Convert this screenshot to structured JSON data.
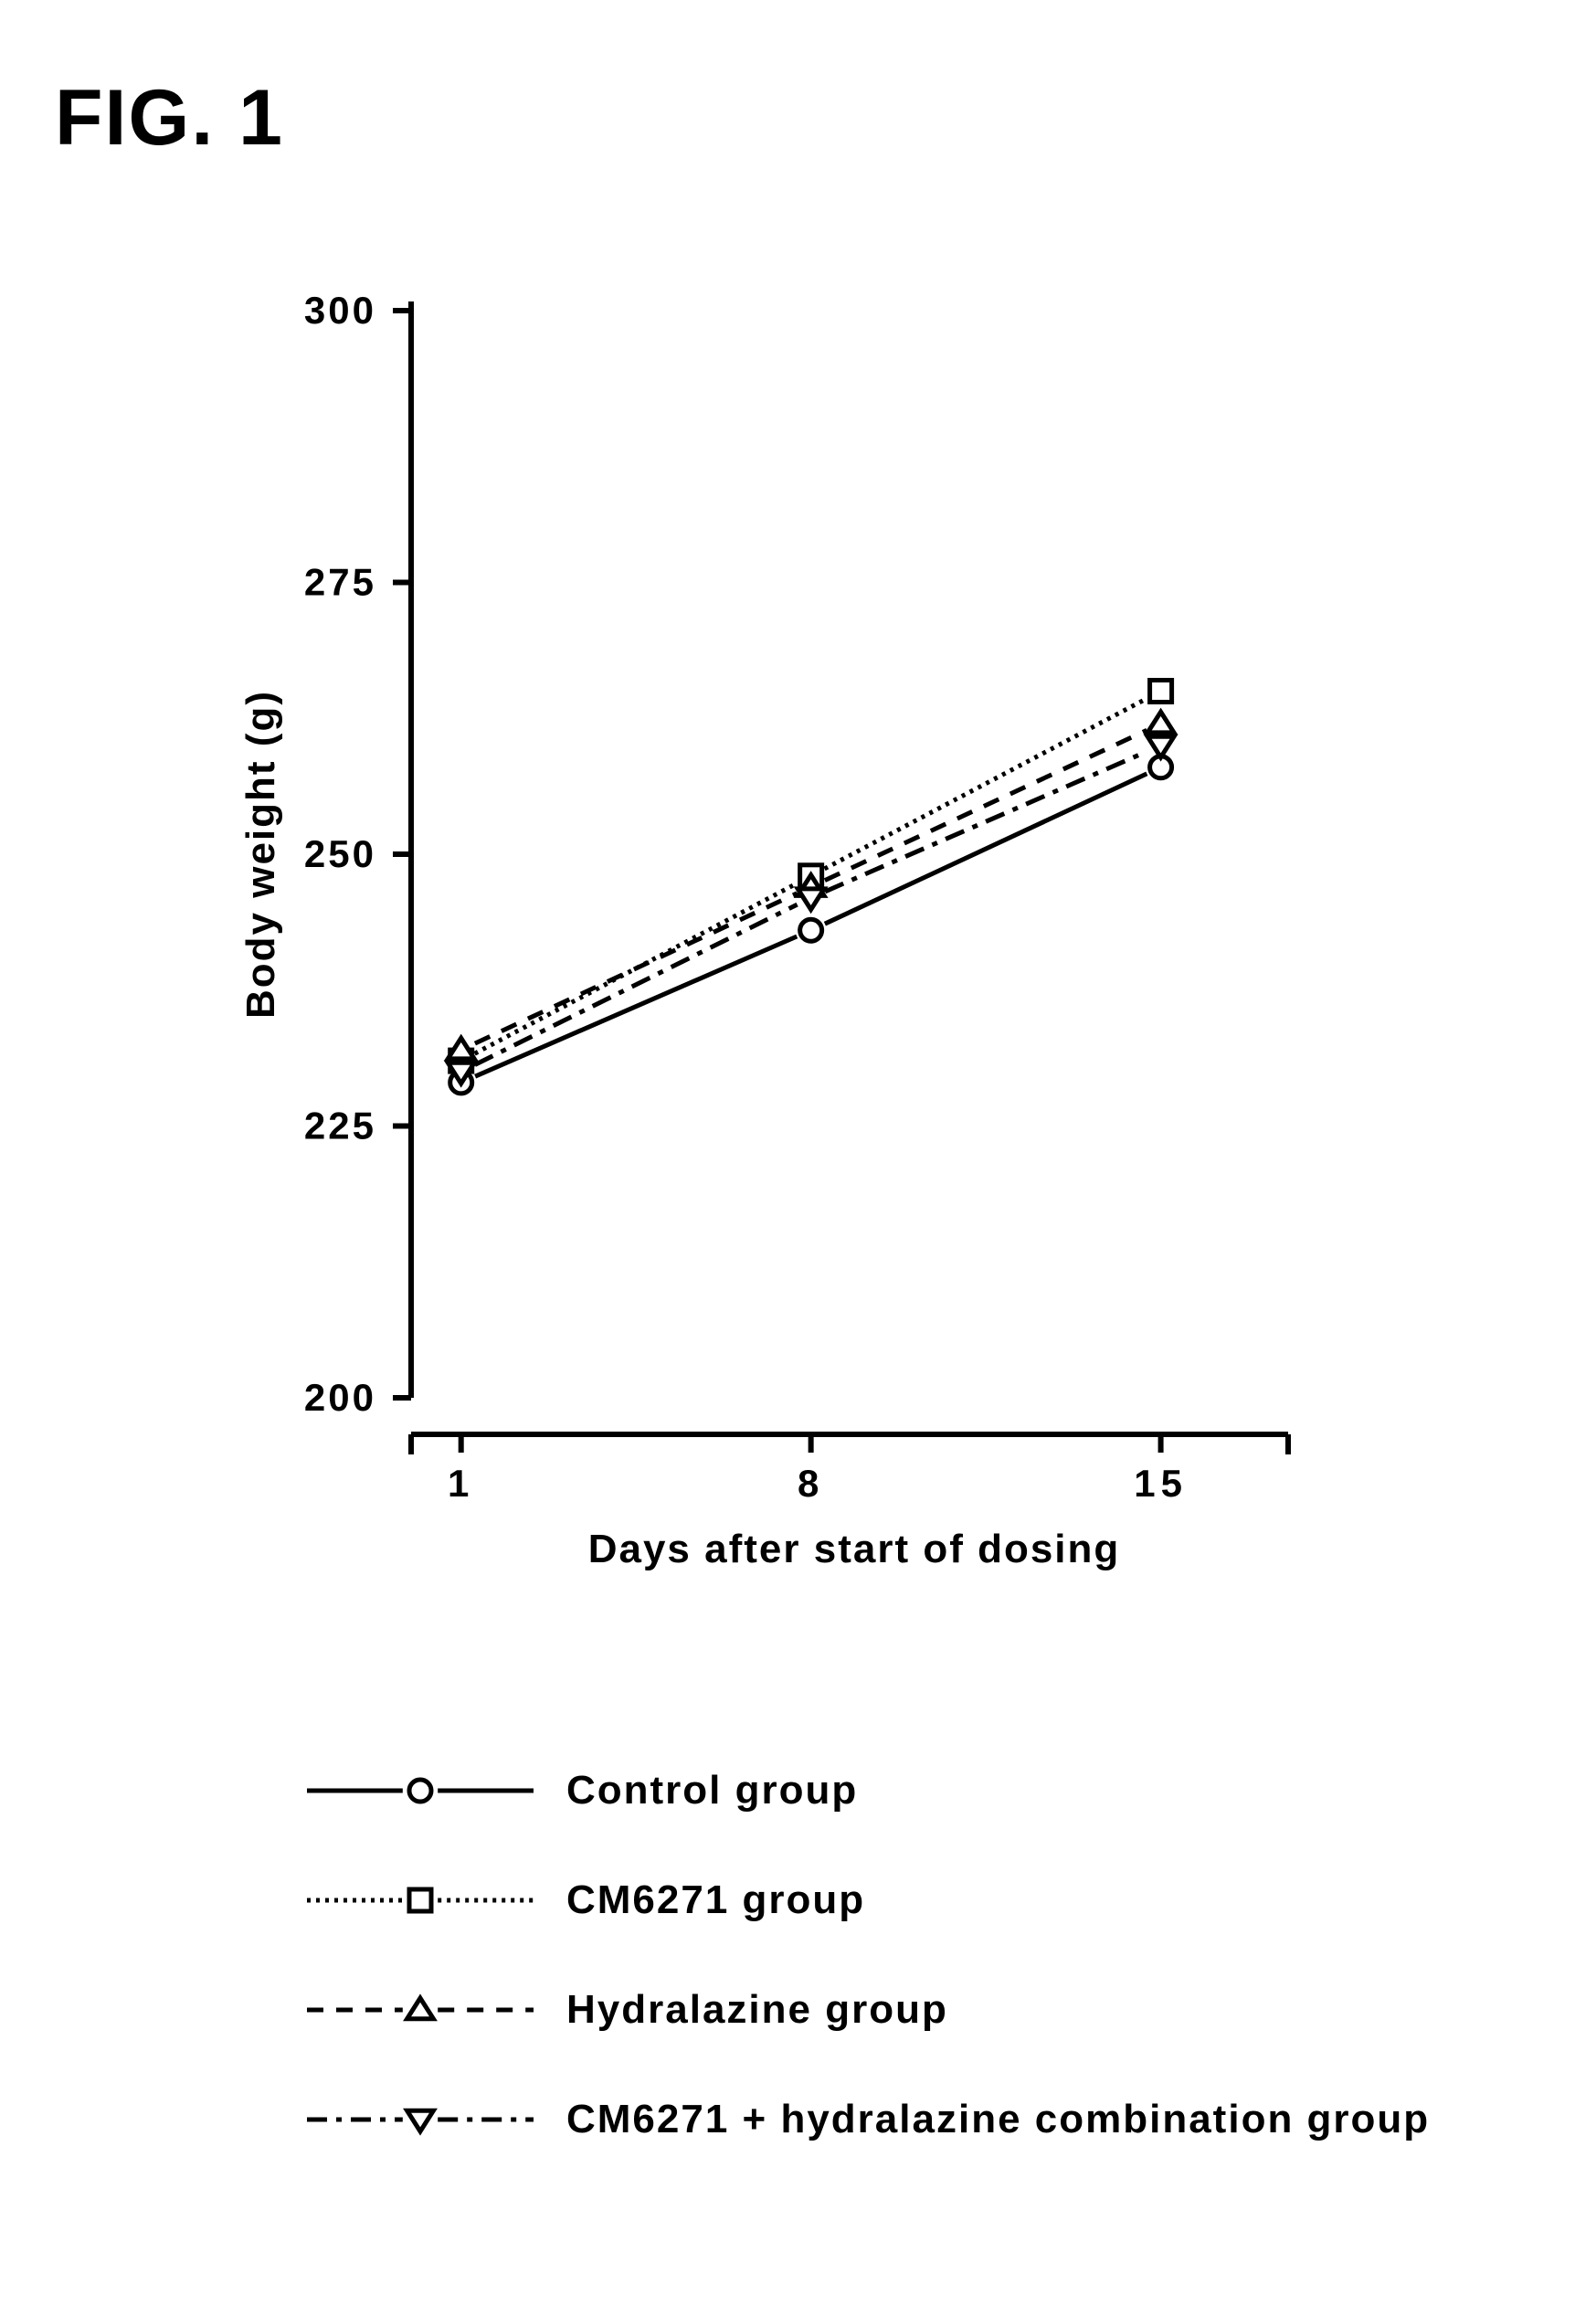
{
  "figure_title": "FIG. 1",
  "chart": {
    "type": "line",
    "background_color": "#ffffff",
    "axis_color": "#000000",
    "axis_width": 6,
    "tick_length": 20,
    "tick_width": 6,
    "tick_fontsize": 42,
    "tick_fontweight": 700,
    "label_fontsize": 44,
    "label_fontweight": 700,
    "label_letter_spacing": 2,
    "text_color": "#000000",
    "xlabel": "Days after start of dosing",
    "ylabel": "Body weight (g)",
    "xlim": [
      0,
      17
    ],
    "ylim": [
      200,
      300
    ],
    "xticks": [
      1,
      8,
      15
    ],
    "yticks": [
      200,
      225,
      250,
      275,
      300
    ],
    "x_tick_labels": [
      "1",
      "8",
      "15"
    ],
    "y_tick_labels": [
      "200",
      "225",
      "250",
      "275",
      "300"
    ],
    "x_axis_offset_below": 40,
    "marker_size": 24,
    "marker_stroke": 5,
    "marker_fill": "#ffffff",
    "line_width": 5,
    "series": [
      {
        "name": "control",
        "label": "Control group",
        "marker": "circle",
        "dash": "none",
        "color": "#000000",
        "x": [
          1,
          8,
          15
        ],
        "y": [
          229,
          243,
          258
        ]
      },
      {
        "name": "cm6271",
        "label": "CM6271 group",
        "marker": "square",
        "dash": "dense-dot",
        "color": "#000000",
        "x": [
          1,
          8,
          15
        ],
        "y": [
          231,
          248,
          265
        ]
      },
      {
        "name": "hydralazine",
        "label": "Hydralazine group",
        "marker": "triangle-up",
        "dash": "dash",
        "color": "#000000",
        "x": [
          1,
          8,
          15
        ],
        "y": [
          232,
          247,
          262
        ]
      },
      {
        "name": "combination",
        "label": "CM6271 + hydralazine combination group",
        "marker": "triangle-down",
        "dash": "dash-dot",
        "color": "#000000",
        "x": [
          1,
          8,
          15
        ],
        "y": [
          230,
          246,
          260
        ]
      }
    ]
  },
  "legend": {
    "swatch_line_length": 260,
    "swatch_height": 60,
    "label_fontsize": 44,
    "label_fontweight": 700,
    "row_gap": 120
  }
}
